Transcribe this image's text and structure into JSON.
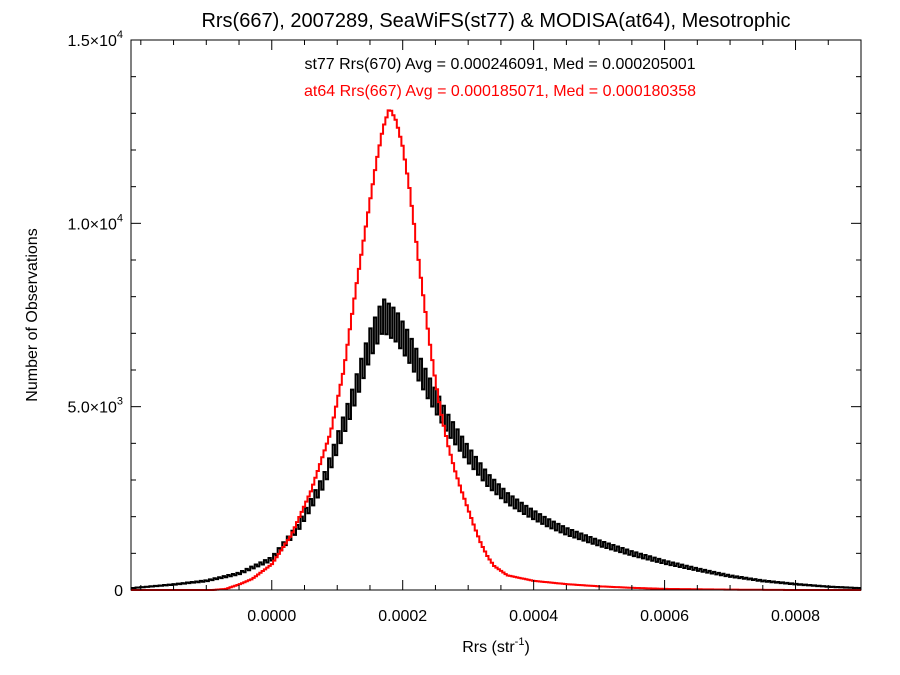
{
  "chart_data": {
    "type": "line",
    "title": "Rrs(667), 2007289, SeaWiFS(st77) & MODISA(at64), Mesotrophic",
    "xlabel": "Rrs (str",
    "xlabel_sup": "-1",
    "xlabel_close": ")",
    "ylabel": "Number of Observations",
    "xlim": [
      -0.000215,
      0.0009
    ],
    "ylim": [
      0,
      15000
    ],
    "x_ticks": [
      {
        "value": 0.0,
        "label": "0.0000"
      },
      {
        "value": 0.0002,
        "label": "0.0002"
      },
      {
        "value": 0.0004,
        "label": "0.0004"
      },
      {
        "value": 0.0006,
        "label": "0.0006"
      },
      {
        "value": 0.0008,
        "label": "0.0008"
      }
    ],
    "y_ticks": [
      {
        "value": 0,
        "mantissa": "0",
        "exp": ""
      },
      {
        "value": 5000,
        "mantissa": "5.0×10",
        "exp": "3"
      },
      {
        "value": 10000,
        "mantissa": "1.0×10",
        "exp": "4"
      },
      {
        "value": 15000,
        "mantissa": "1.5×10",
        "exp": "4"
      }
    ],
    "annotations": [
      {
        "text": "st77 Rrs(670) Avg = 0.000246091, Med = 0.000205001",
        "color": "#000000"
      },
      {
        "text": "at64 Rrs(667) Avg = 0.000185071, Med = 0.000180358",
        "color": "#ff0000"
      }
    ],
    "series": [
      {
        "label": "st77",
        "color": "#000000",
        "noisy": true,
        "points": [
          [
            -0.000215,
            50
          ],
          [
            -0.00015,
            150
          ],
          [
            -0.0001,
            250
          ],
          [
            -5e-05,
            450
          ],
          [
            0.0,
            850
          ],
          [
            4e-05,
            1700
          ],
          [
            8e-05,
            3000
          ],
          [
            0.00012,
            5000
          ],
          [
            0.00015,
            6700
          ],
          [
            0.00017,
            7500
          ],
          [
            0.00019,
            7200
          ],
          [
            0.00021,
            6600
          ],
          [
            0.00024,
            5500
          ],
          [
            0.00027,
            4500
          ],
          [
            0.0003,
            3700
          ],
          [
            0.00033,
            3000
          ],
          [
            0.00036,
            2500
          ],
          [
            0.00039,
            2150
          ],
          [
            0.00042,
            1850
          ],
          [
            0.00045,
            1600
          ],
          [
            0.0005,
            1280
          ],
          [
            0.00055,
            1000
          ],
          [
            0.0006,
            760
          ],
          [
            0.00065,
            560
          ],
          [
            0.0007,
            380
          ],
          [
            0.00075,
            250
          ],
          [
            0.0008,
            160
          ],
          [
            0.00085,
            90
          ],
          [
            0.0009,
            50
          ]
        ]
      },
      {
        "label": "at64",
        "color": "#ff0000",
        "noisy": false,
        "points": [
          [
            -0.000215,
            0
          ],
          [
            -9e-05,
            0
          ],
          [
            -7e-05,
            30
          ],
          [
            -5e-05,
            150
          ],
          [
            -3e-05,
            300
          ],
          [
            0.0,
            700
          ],
          [
            3e-05,
            1500
          ],
          [
            6e-05,
            2700
          ],
          [
            9e-05,
            4300
          ],
          [
            0.00011,
            6000
          ],
          [
            0.00013,
            8400
          ],
          [
            0.00015,
            10600
          ],
          [
            0.00016,
            11700
          ],
          [
            0.00017,
            12600
          ],
          [
            0.00018,
            13150
          ],
          [
            0.00019,
            12800
          ],
          [
            0.0002,
            12100
          ],
          [
            0.00021,
            11000
          ],
          [
            0.00022,
            9600
          ],
          [
            0.00023,
            8200
          ],
          [
            0.00024,
            6900
          ],
          [
            0.00025,
            5700
          ],
          [
            0.00026,
            4700
          ],
          [
            0.00027,
            3900
          ],
          [
            0.00028,
            3250
          ],
          [
            0.00029,
            2700
          ],
          [
            0.0003,
            2200
          ],
          [
            0.00031,
            1700
          ],
          [
            0.00032,
            1250
          ],
          [
            0.00033,
            900
          ],
          [
            0.00034,
            650
          ],
          [
            0.00036,
            400
          ],
          [
            0.0004,
            250
          ],
          [
            0.00045,
            160
          ],
          [
            0.0005,
            100
          ],
          [
            0.00055,
            60
          ],
          [
            0.0006,
            30
          ],
          [
            0.0007,
            10
          ],
          [
            0.0008,
            0
          ],
          [
            0.0009,
            0
          ]
        ]
      }
    ]
  }
}
